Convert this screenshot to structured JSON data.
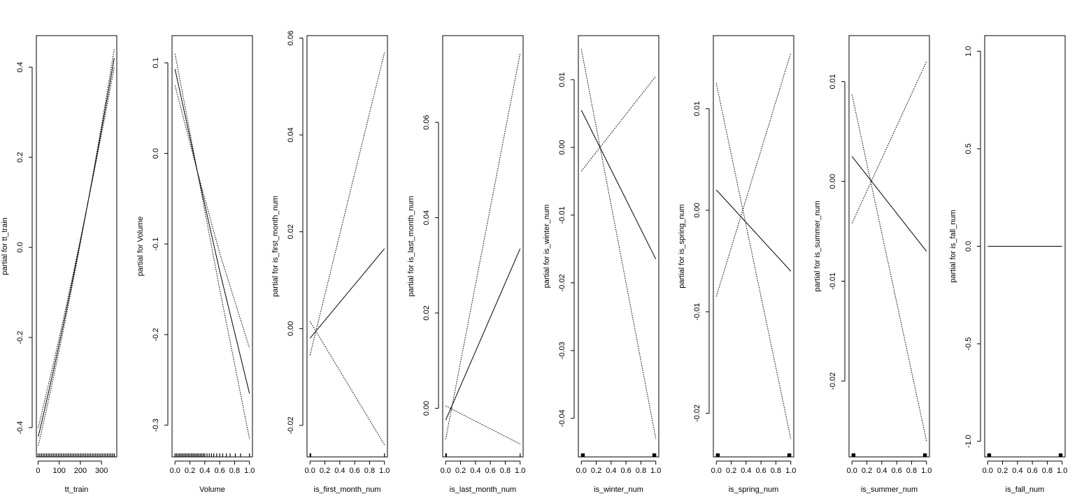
{
  "figure": {
    "background": "#ffffff",
    "line_color": "#000000"
  },
  "chart_data": [
    {
      "type": "line",
      "xlabel": "tt_train",
      "ylabel": "partial for tt_train",
      "xlim": [
        -8,
        372
      ],
      "ylim": [
        -0.465,
        0.47
      ],
      "xticks": [
        0,
        100,
        200,
        300
      ],
      "xtick_labels": [
        "0",
        "100",
        "200",
        "300"
      ],
      "yticks": [
        -0.4,
        -0.2,
        0.0,
        0.2,
        0.4
      ],
      "ytick_labels": [
        "-0.4",
        "-0.2",
        "0.0",
        "0.2",
        "0.4"
      ],
      "curve_samples": 48,
      "series": [
        {
          "style": "solid",
          "points": [
            [
              1,
              -0.42
            ],
            [
              360,
              0.42
            ]
          ],
          "curve": 1e-06
        },
        {
          "style": "dotted",
          "points": [
            [
              1,
              -0.44
            ],
            [
              360,
              0.44
            ]
          ],
          "curve": 1.2e-06
        },
        {
          "style": "dotted",
          "points": [
            [
              1,
              -0.4
            ],
            [
              360,
              0.4
            ]
          ],
          "curve": 8e-07
        }
      ],
      "rug": [
        0,
        8,
        16,
        24,
        32,
        40,
        48,
        56,
        64,
        72,
        80,
        88,
        96,
        104,
        112,
        120,
        128,
        136,
        144,
        152,
        160,
        168,
        176,
        184,
        192,
        200,
        208,
        216,
        224,
        232,
        240,
        248,
        256,
        264,
        272,
        280,
        288,
        296,
        304,
        312,
        320,
        328,
        336,
        344,
        352,
        360
      ]
    },
    {
      "type": "line",
      "xlabel": "Volume",
      "ylabel": "partial for Volume",
      "xlim": [
        -0.04,
        1.04
      ],
      "ylim": [
        -0.335,
        0.13
      ],
      "xticks": [
        0,
        0.2,
        0.4,
        0.6,
        0.8,
        1.0
      ],
      "xtick_labels": [
        "0.0",
        "0.2",
        "0.4",
        "0.6",
        "0.8",
        "1.0"
      ],
      "yticks": [
        -0.3,
        -0.2,
        -0.1,
        0.0,
        0.1
      ],
      "ytick_labels": [
        "-0.3",
        "-0.2",
        "-0.1",
        "0.0",
        "0.1"
      ],
      "series": [
        {
          "style": "solid",
          "points": [
            [
              0,
              0.093
            ],
            [
              0.3,
              -0.02
            ],
            [
              0.6,
              -0.13
            ],
            [
              1.0,
              -0.265
            ]
          ]
        },
        {
          "style": "dotted",
          "points": [
            [
              0,
              0.11
            ],
            [
              0.3,
              -0.02
            ],
            [
              0.6,
              -0.15
            ],
            [
              1.0,
              -0.315
            ]
          ]
        },
        {
          "style": "dotted",
          "points": [
            [
              0,
              0.075
            ],
            [
              0.3,
              -0.02
            ],
            [
              0.6,
              -0.11
            ],
            [
              1.0,
              -0.215
            ]
          ]
        }
      ],
      "rug": [
        0.0,
        0.02,
        0.04,
        0.06,
        0.08,
        0.1,
        0.12,
        0.14,
        0.16,
        0.18,
        0.2,
        0.22,
        0.24,
        0.26,
        0.28,
        0.3,
        0.32,
        0.34,
        0.36,
        0.38,
        0.4,
        0.43,
        0.46,
        0.49,
        0.52,
        0.56,
        0.6,
        0.64,
        0.69,
        0.74,
        0.81,
        0.88,
        1.0
      ]
    },
    {
      "type": "line",
      "xlabel": "is_first_month_num",
      "ylabel": "partial for is_first_month_num",
      "xlim": [
        -0.04,
        1.04
      ],
      "ylim": [
        -0.0265,
        0.0605
      ],
      "xticks": [
        0,
        0.2,
        0.4,
        0.6,
        0.8,
        1.0
      ],
      "xtick_labels": [
        "0.0",
        "0.2",
        "0.4",
        "0.6",
        "0.8",
        "1.0"
      ],
      "yticks": [
        -0.02,
        0.0,
        0.02,
        0.04,
        0.06
      ],
      "ytick_labels": [
        "-0.02",
        "0.00",
        "0.02",
        "0.04",
        "0.06"
      ],
      "series": [
        {
          "style": "solid",
          "points": [
            [
              0,
              -0.002
            ],
            [
              1,
              0.0165
            ]
          ]
        },
        {
          "style": "dotted",
          "points": [
            [
              0,
              -0.0055
            ],
            [
              1,
              0.057
            ]
          ]
        },
        {
          "style": "dotted",
          "points": [
            [
              0,
              0.0015
            ],
            [
              1,
              -0.024
            ]
          ]
        }
      ],
      "rug": [
        0,
        0.01,
        1.0
      ]
    },
    {
      "type": "line",
      "xlabel": "is_last_month_num",
      "ylabel": "partial for is_last_month_num",
      "xlim": [
        -0.04,
        1.04
      ],
      "ylim": [
        -0.0102,
        0.0782
      ],
      "xticks": [
        0,
        0.2,
        0.4,
        0.6,
        0.8,
        1.0
      ],
      "xtick_labels": [
        "0.0",
        "0.2",
        "0.4",
        "0.6",
        "0.8",
        "1.0"
      ],
      "yticks": [
        0.0,
        0.02,
        0.04,
        0.06
      ],
      "ytick_labels": [
        "0.00",
        "0.02",
        "0.04",
        "0.06"
      ],
      "series": [
        {
          "style": "solid",
          "points": [
            [
              0,
              -0.0025
            ],
            [
              1,
              0.0335
            ]
          ]
        },
        {
          "style": "dotted",
          "points": [
            [
              0,
              -0.0065
            ],
            [
              1,
              0.0745
            ]
          ]
        },
        {
          "style": "dotted",
          "points": [
            [
              0,
              0.0005
            ],
            [
              1,
              -0.0075
            ]
          ]
        }
      ],
      "rug": [
        0,
        0.01,
        1.0
      ]
    },
    {
      "type": "line",
      "xlabel": "is_winter_num",
      "ylabel": "partial for is_winter_num",
      "xlim": [
        -0.04,
        1.04
      ],
      "ylim": [
        -0.0457,
        0.0165
      ],
      "xticks": [
        0,
        0.2,
        0.4,
        0.6,
        0.8,
        1.0
      ],
      "xtick_labels": [
        "0.0",
        "0.2",
        "0.4",
        "0.6",
        "0.8",
        "1.0"
      ],
      "yticks": [
        -0.04,
        -0.03,
        -0.02,
        -0.01,
        0.0,
        0.01
      ],
      "ytick_labels": [
        "-0.04",
        "-0.03",
        "-0.02",
        "-0.01",
        "0.00",
        "0.01"
      ],
      "series": [
        {
          "style": "solid",
          "points": [
            [
              0,
              0.0055
            ],
            [
              1,
              -0.0165
            ]
          ]
        },
        {
          "style": "dotted",
          "points": [
            [
              0,
              0.0145
            ],
            [
              1,
              -0.043
            ]
          ]
        },
        {
          "style": "dotted",
          "points": [
            [
              0,
              -0.0035
            ],
            [
              1,
              0.0105
            ]
          ]
        }
      ],
      "rug": [
        0,
        0.01,
        0.02,
        0.03,
        0.04,
        0.96,
        0.97,
        0.98,
        0.99,
        1.0
      ]
    },
    {
      "type": "line",
      "xlabel": "is_spring_num",
      "ylabel": "partial for is_spring_num",
      "xlim": [
        -0.04,
        1.04
      ],
      "ylim": [
        -0.0243,
        0.0172
      ],
      "xticks": [
        0,
        0.2,
        0.4,
        0.6,
        0.8,
        1.0
      ],
      "xtick_labels": [
        "0.0",
        "0.2",
        "0.4",
        "0.6",
        "0.8",
        "1.0"
      ],
      "yticks": [
        -0.02,
        -0.01,
        0.0,
        0.01
      ],
      "ytick_labels": [
        "-0.02",
        "-0.01",
        "0.00",
        "0.01"
      ],
      "series": [
        {
          "style": "solid",
          "points": [
            [
              0,
              0.002
            ],
            [
              1,
              -0.006
            ]
          ]
        },
        {
          "style": "dotted",
          "points": [
            [
              0,
              0.0125
            ],
            [
              1,
              -0.0225
            ]
          ]
        },
        {
          "style": "dotted",
          "points": [
            [
              0,
              -0.0085
            ],
            [
              1,
              0.0155
            ]
          ]
        }
      ],
      "rug": [
        0,
        0.01,
        0.02,
        0.03,
        0.04,
        0.96,
        0.97,
        0.98,
        0.99,
        1.0
      ]
    },
    {
      "type": "line",
      "xlabel": "is_summer_num",
      "ylabel": "partial for is_summer_num",
      "xlim": [
        -0.04,
        1.04
      ],
      "ylim": [
        -0.0276,
        0.0146
      ],
      "xticks": [
        0,
        0.2,
        0.4,
        0.6,
        0.8,
        1.0
      ],
      "xtick_labels": [
        "0.0",
        "0.2",
        "0.4",
        "0.6",
        "0.8",
        "1.0"
      ],
      "yticks": [
        -0.02,
        -0.01,
        0.0,
        0.01
      ],
      "ytick_labels": [
        "-0.02",
        "-0.01",
        "0.00",
        "0.01"
      ],
      "series": [
        {
          "style": "solid",
          "points": [
            [
              0,
              0.0025
            ],
            [
              1,
              -0.007
            ]
          ]
        },
        {
          "style": "dotted",
          "points": [
            [
              0,
              0.0087
            ],
            [
              1,
              -0.026
            ]
          ]
        },
        {
          "style": "dotted",
          "points": [
            [
              0,
              -0.0042
            ],
            [
              1,
              0.012
            ]
          ]
        }
      ],
      "rug": [
        0,
        0.01,
        0.02,
        0.03,
        0.04,
        0.96,
        0.97,
        0.98,
        0.99,
        1.0
      ]
    },
    {
      "type": "line",
      "xlabel": "is_fall_num",
      "ylabel": "partial for is_fall_num",
      "xlim": [
        -0.04,
        1.04
      ],
      "ylim": [
        -1.08,
        1.08
      ],
      "xticks": [
        0,
        0.2,
        0.4,
        0.6,
        0.8,
        1.0
      ],
      "xtick_labels": [
        "0.0",
        "0.2",
        "0.4",
        "0.6",
        "0.8",
        "1.0"
      ],
      "yticks": [
        -1.0,
        -0.5,
        0.0,
        0.5,
        1.0
      ],
      "ytick_labels": [
        "-1.0",
        "-0.5",
        "0.0",
        "0.5",
        "1.0"
      ],
      "series": [
        {
          "style": "solid",
          "points": [
            [
              0,
              0.0
            ],
            [
              1,
              0.0
            ]
          ]
        }
      ],
      "rug": [
        0,
        0.01,
        0.02,
        0.03,
        0.04,
        0.96,
        0.97,
        0.98,
        0.99,
        1.0
      ]
    }
  ]
}
